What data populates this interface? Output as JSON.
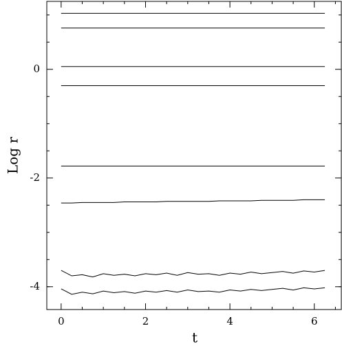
{
  "chart_data": {
    "type": "line",
    "x_label": "t",
    "y_label": "Log r",
    "x": [
      0,
      0.25,
      0.5,
      0.75,
      1,
      1.25,
      1.5,
      1.75,
      2,
      2.25,
      2.5,
      2.75,
      3,
      3.25,
      3.5,
      3.75,
      4,
      4.25,
      4.5,
      4.75,
      5,
      5.25,
      5.5,
      5.75,
      6,
      6.25
    ],
    "series": [
      {
        "color": "#000000",
        "values": [
          1.03,
          1.03,
          1.03,
          1.03,
          1.03,
          1.03,
          1.03,
          1.03,
          1.03,
          1.03,
          1.03,
          1.03,
          1.03,
          1.03,
          1.03,
          1.03,
          1.03,
          1.03,
          1.03,
          1.03,
          1.03,
          1.03,
          1.03,
          1.03,
          1.03,
          1.03
        ]
      },
      {
        "color": "#000000",
        "values": [
          0.76,
          0.76,
          0.76,
          0.76,
          0.76,
          0.76,
          0.76,
          0.76,
          0.76,
          0.76,
          0.76,
          0.76,
          0.76,
          0.76,
          0.76,
          0.76,
          0.76,
          0.76,
          0.76,
          0.76,
          0.76,
          0.76,
          0.76,
          0.76,
          0.76,
          0.76
        ]
      },
      {
        "color": "#000000",
        "values": [
          0.05,
          0.05,
          0.05,
          0.05,
          0.05,
          0.05,
          0.05,
          0.05,
          0.05,
          0.05,
          0.05,
          0.05,
          0.05,
          0.05,
          0.05,
          0.05,
          0.05,
          0.05,
          0.05,
          0.05,
          0.05,
          0.05,
          0.05,
          0.05,
          0.05,
          0.05
        ]
      },
      {
        "color": "#000000",
        "values": [
          -0.3,
          -0.3,
          -0.3,
          -0.3,
          -0.3,
          -0.3,
          -0.3,
          -0.3,
          -0.3,
          -0.3,
          -0.3,
          -0.3,
          -0.3,
          -0.3,
          -0.3,
          -0.3,
          -0.3,
          -0.3,
          -0.3,
          -0.3,
          -0.3,
          -0.3,
          -0.3,
          -0.3,
          -0.3,
          -0.3
        ]
      },
      {
        "color": "#000000",
        "values": [
          -1.78,
          -1.78,
          -1.78,
          -1.78,
          -1.78,
          -1.78,
          -1.78,
          -1.78,
          -1.78,
          -1.78,
          -1.78,
          -1.78,
          -1.78,
          -1.78,
          -1.78,
          -1.78,
          -1.78,
          -1.78,
          -1.78,
          -1.78,
          -1.78,
          -1.78,
          -1.78,
          -1.78,
          -1.78,
          -1.78
        ]
      },
      {
        "color": "#000000",
        "values": [
          -2.46,
          -2.46,
          -2.45,
          -2.45,
          -2.45,
          -2.45,
          -2.44,
          -2.44,
          -2.44,
          -2.44,
          -2.43,
          -2.43,
          -2.43,
          -2.43,
          -2.43,
          -2.42,
          -2.42,
          -2.42,
          -2.42,
          -2.41,
          -2.41,
          -2.41,
          -2.41,
          -2.4,
          -2.4,
          -2.4
        ]
      },
      {
        "color": "#000000",
        "values": [
          -3.7,
          -3.8,
          -3.78,
          -3.82,
          -3.76,
          -3.79,
          -3.77,
          -3.8,
          -3.76,
          -3.78,
          -3.75,
          -3.79,
          -3.74,
          -3.77,
          -3.76,
          -3.79,
          -3.75,
          -3.77,
          -3.73,
          -3.76,
          -3.74,
          -3.72,
          -3.75,
          -3.71,
          -3.73,
          -3.7
        ]
      },
      {
        "color": "#000000",
        "values": [
          -4.04,
          -4.14,
          -4.1,
          -4.13,
          -4.08,
          -4.11,
          -4.09,
          -4.12,
          -4.08,
          -4.1,
          -4.07,
          -4.1,
          -4.06,
          -4.09,
          -4.08,
          -4.1,
          -4.06,
          -4.08,
          -4.05,
          -4.07,
          -4.05,
          -4.03,
          -4.06,
          -4.02,
          -4.04,
          -4.02
        ]
      }
    ],
    "xlim": [
      -0.34,
      6.64
    ],
    "ylim": [
      -4.42,
      1.25
    ],
    "xticks": [
      0,
      2,
      4,
      6
    ],
    "yticks": [
      -4,
      -2,
      0
    ],
    "xminorticks": [
      0.5,
      1,
      1.5,
      2.5,
      3,
      3.5,
      4.5,
      5,
      5.5,
      6.5
    ],
    "yminorticks": [
      -4,
      -3.5,
      -3,
      -2.5,
      -1.5,
      -1,
      -0.5,
      0.5,
      1
    ]
  }
}
